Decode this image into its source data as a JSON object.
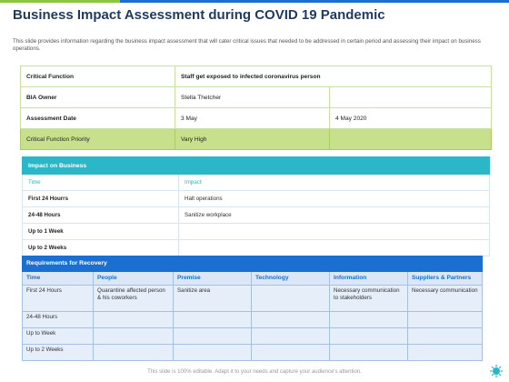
{
  "title": "Business Impact Assessment during COVID 19 Pandemic",
  "description": "This slide provides information regarding the business impact assessment that will cater critical issues that needed to be addressed in certain period and assessing their impact on business operations.",
  "bia": {
    "rows": [
      {
        "label": "Critical Function",
        "c1": "Staff get exposed to infected coronavirus person",
        "c2": ""
      },
      {
        "label": "BIA Owner",
        "c1": "Stella Thetcher",
        "c2": ""
      },
      {
        "label": "Assessment Date",
        "c1": "3 May",
        "c2": "4 May 2020"
      },
      {
        "label": "Critical Function Priority",
        "c1": "Vary High",
        "c2": ""
      }
    ]
  },
  "impact": {
    "heading": "Impact on Business",
    "columns": [
      "Time",
      "Impact"
    ],
    "rows": [
      {
        "time": "First 24 Hourrs",
        "impact": "Halt operations"
      },
      {
        "time": "24-48 Hours",
        "impact": "Sanitize workplace"
      },
      {
        "time": "Up to 1 Week",
        "impact": ""
      },
      {
        "time": "Up to 2 Weeks",
        "impact": ""
      }
    ]
  },
  "recovery": {
    "heading": "Requirements for Recovery",
    "columns": [
      "Time",
      "People",
      "Premise",
      "Technology",
      "Information",
      "Suppliers & Partners"
    ],
    "rows": [
      [
        "First 24 Hours",
        "Quarantine affected person & his coworkers",
        "Sanitize area",
        "",
        "Necessary communication to stakeholders",
        "Necessary communication"
      ],
      [
        "24-48 Hours",
        "",
        "",
        "",
        "",
        ""
      ],
      [
        "Up to Week",
        "",
        "",
        "",
        "",
        ""
      ],
      [
        "Up to 2 Weeks",
        "",
        "",
        "",
        "",
        ""
      ]
    ]
  },
  "footer": "This slide is 100% editable. Adapt it to your needs and capture your audience's attention.",
  "colors": {
    "green": "#8cc63f",
    "blue": "#1b6fd1",
    "teal": "#2bb7c8",
    "title": "#1f3a5f"
  }
}
